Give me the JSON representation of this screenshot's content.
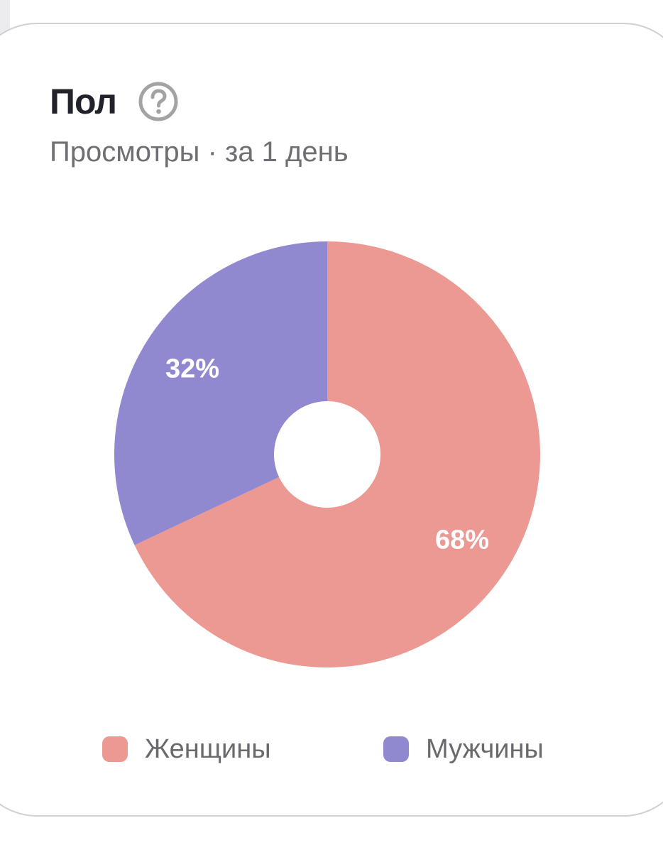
{
  "card": {
    "title": "Пол",
    "help_icon": "question-circle-icon",
    "subtitle": "Просмотры · за 1 день"
  },
  "colors": {
    "women": "#ec9893",
    "men": "#9089cf",
    "help_icon": "#a3a3a6"
  },
  "chart_data": {
    "type": "pie",
    "style": "donut",
    "categories": [
      "Женщины",
      "Мужчины"
    ],
    "values": [
      68,
      32
    ],
    "data_labels": [
      "68%",
      "32%"
    ],
    "colors": [
      "#ec9893",
      "#9089cf"
    ],
    "legend_position": "bottom",
    "start_angle": "top",
    "direction": "clockwise"
  }
}
